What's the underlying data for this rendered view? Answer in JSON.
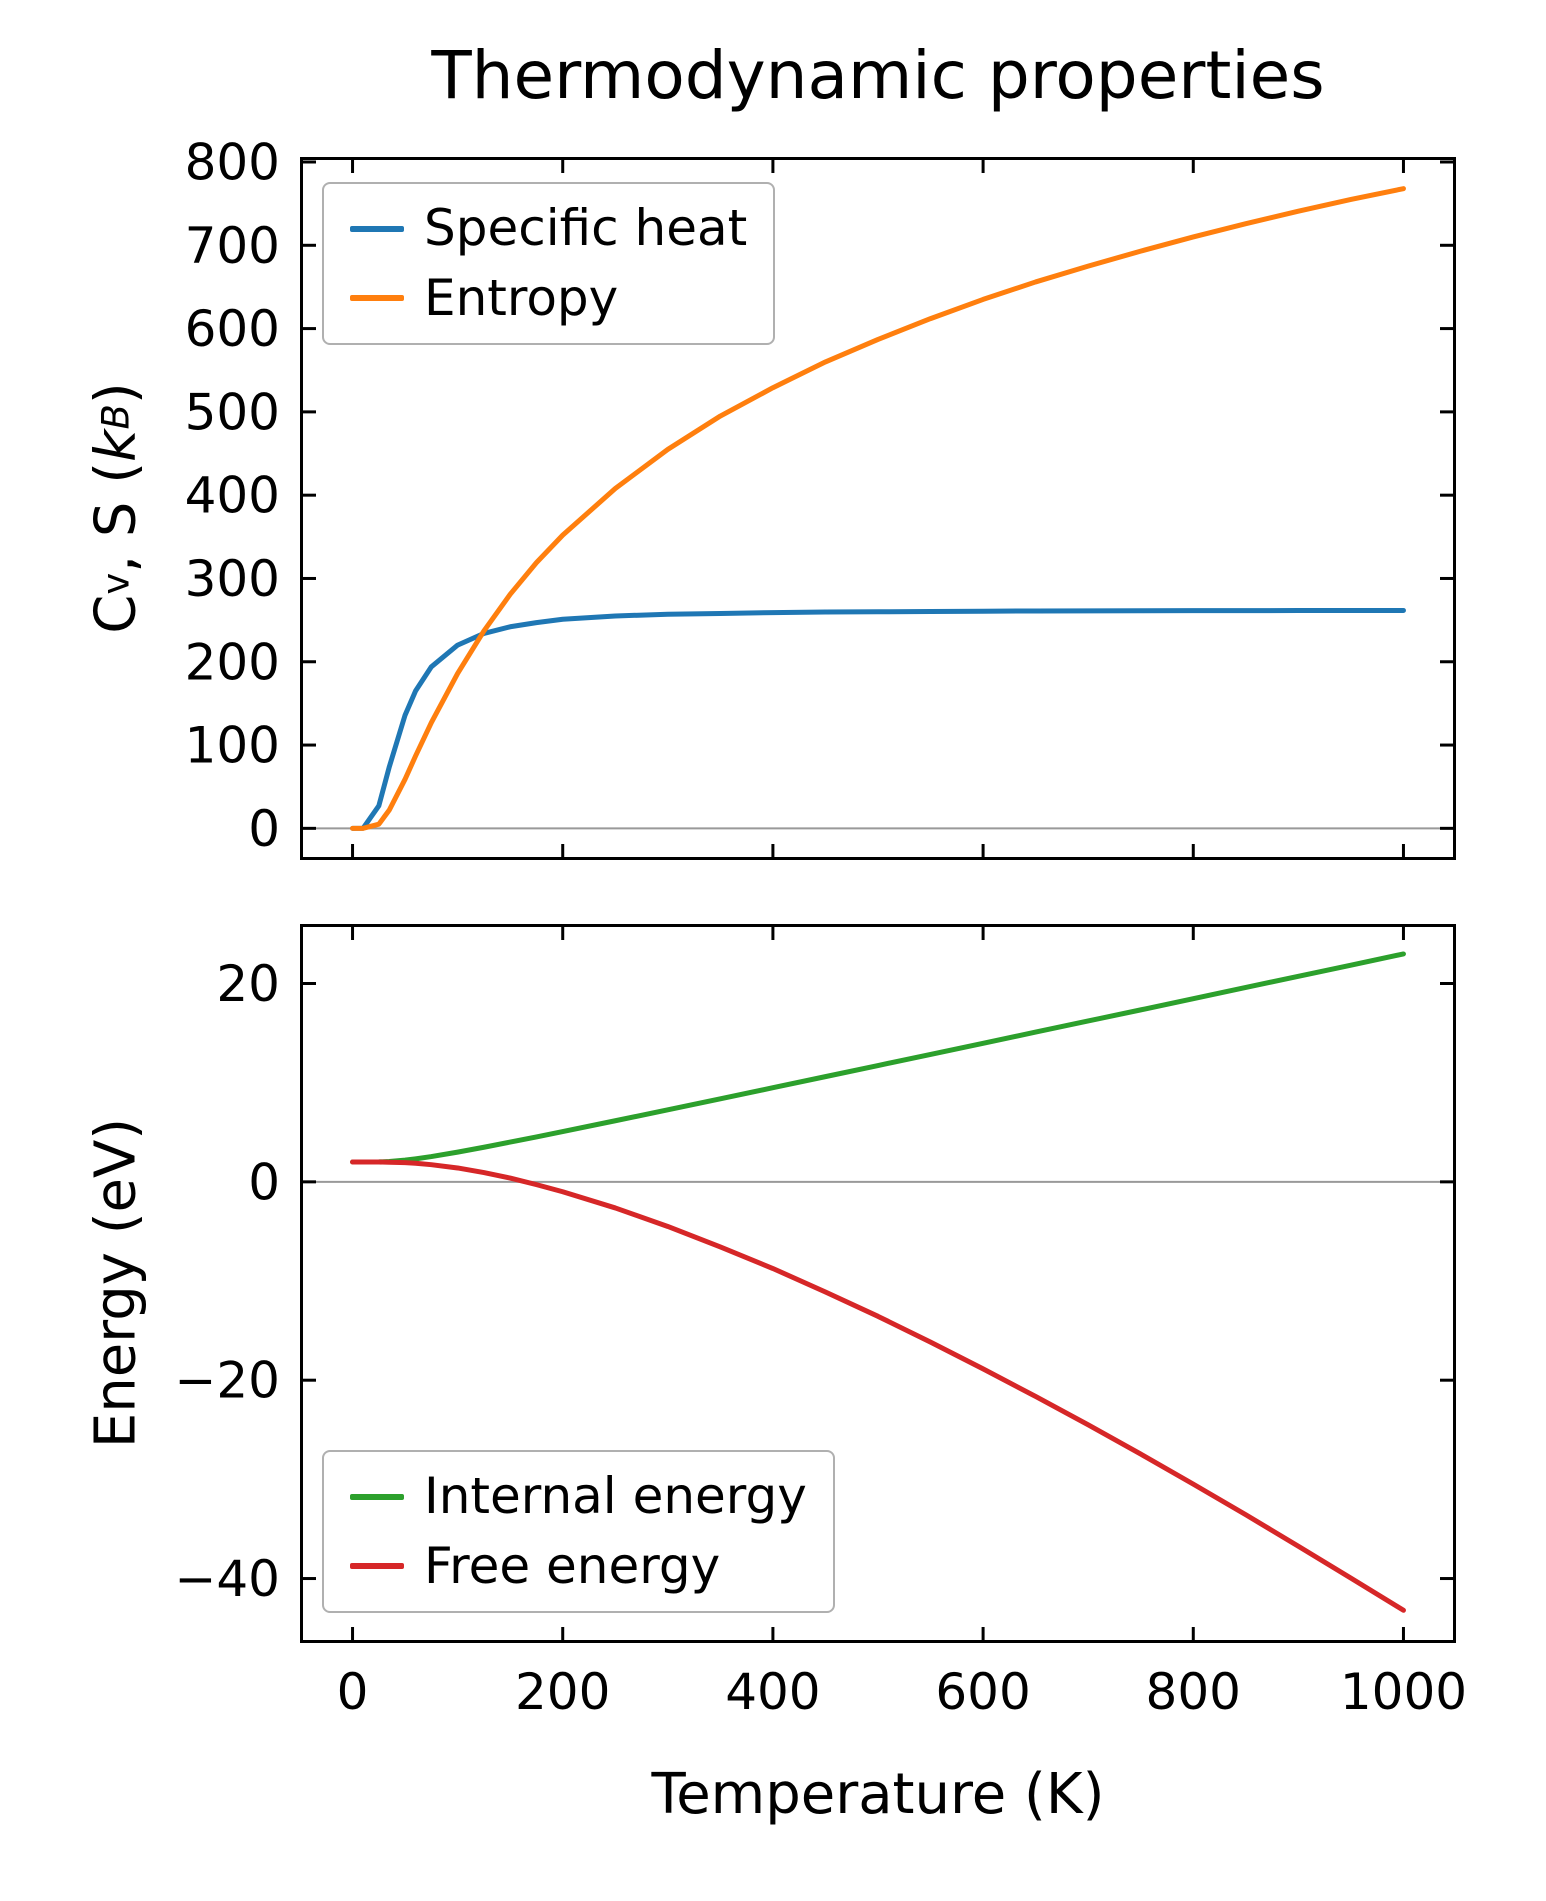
{
  "title": "Thermodynamic properties",
  "labels": {
    "cv_parts": [
      "C",
      "v",
      ", S (",
      "k",
      "B",
      ")"
    ],
    "energy": "Energy (eV)",
    "x": "Temperature (K)"
  },
  "colors": {
    "specific_heat": "#1f77b4",
    "entropy": "#ff7f0e",
    "internal_energy": "#2ca02c",
    "free_energy": "#d62728",
    "zero_line": "#999999",
    "spine": "#000000",
    "legend_border": "#b0b0b0"
  },
  "chart_data": [
    {
      "type": "line",
      "title": "Thermodynamic properties",
      "ylabel": "Cv, S (kB)",
      "xlabel": "Temperature (K)",
      "xlim": [
        -50,
        1050
      ],
      "ylim": [
        -38,
        806
      ],
      "xticks": [
        0,
        200,
        400,
        600,
        800,
        1000
      ],
      "yticks": [
        0,
        100,
        200,
        300,
        400,
        500,
        600,
        700,
        800
      ],
      "x_tick_labels": false,
      "zero_line": true,
      "legend_position": "upper left",
      "x": [
        0,
        10,
        25,
        35,
        50,
        60,
        75,
        100,
        125,
        150,
        175,
        200,
        250,
        300,
        350,
        400,
        450,
        500,
        550,
        600,
        650,
        700,
        750,
        800,
        850,
        900,
        950,
        1000
      ],
      "series": [
        {
          "name": "Specific heat",
          "color": "#1f77b4",
          "y": [
            0,
            0.1,
            27,
            74,
            136,
            165,
            194,
            220,
            234,
            242,
            247,
            251,
            255,
            257,
            258,
            259,
            259.7,
            260,
            260.4,
            260.7,
            261,
            261.1,
            261.3,
            261.4,
            261.4,
            261.5,
            261.5,
            261.6
          ]
        },
        {
          "name": "Entropy",
          "color": "#ff7f0e",
          "y": [
            0,
            0,
            5,
            22,
            59,
            87,
            127,
            186,
            237,
            281,
            319,
            352,
            408,
            455,
            495,
            529,
            560,
            587,
            612,
            635,
            656,
            675,
            693,
            710,
            726,
            741,
            755,
            768
          ]
        }
      ]
    },
    {
      "type": "line",
      "title": "",
      "ylabel": "Energy (eV)",
      "xlabel": "Temperature (K)",
      "xlim": [
        -50,
        1050
      ],
      "ylim": [
        -46.5,
        26
      ],
      "xticks": [
        0,
        200,
        400,
        600,
        800,
        1000
      ],
      "yticks": [
        -40,
        -20,
        0,
        20
      ],
      "x_tick_labels": true,
      "zero_line": true,
      "legend_position": "lower left",
      "x": [
        0,
        10,
        25,
        35,
        50,
        60,
        75,
        100,
        125,
        150,
        175,
        200,
        250,
        300,
        350,
        400,
        450,
        500,
        550,
        600,
        650,
        700,
        750,
        800,
        850,
        900,
        950,
        1000
      ],
      "series": [
        {
          "name": "Internal energy",
          "color": "#2ca02c",
          "y": [
            2.0,
            2.0,
            2.01,
            2.05,
            2.19,
            2.32,
            2.55,
            3.0,
            3.49,
            4.01,
            4.53,
            5.07,
            6.16,
            7.26,
            8.37,
            9.49,
            10.61,
            11.73,
            12.85,
            13.97,
            15.1,
            16.22,
            17.34,
            18.47,
            19.6,
            20.73,
            21.85,
            22.98
          ]
        },
        {
          "name": "Free energy",
          "color": "#d62728",
          "y": [
            2.0,
            2.0,
            2.0,
            1.98,
            1.94,
            1.87,
            1.73,
            1.4,
            0.94,
            0.38,
            -0.28,
            -1.0,
            -2.63,
            -4.5,
            -6.56,
            -8.74,
            -11.11,
            -13.56,
            -16.16,
            -18.86,
            -21.64,
            -24.5,
            -27.45,
            -30.48,
            -33.57,
            -36.74,
            -39.96,
            -43.2
          ]
        }
      ]
    }
  ]
}
